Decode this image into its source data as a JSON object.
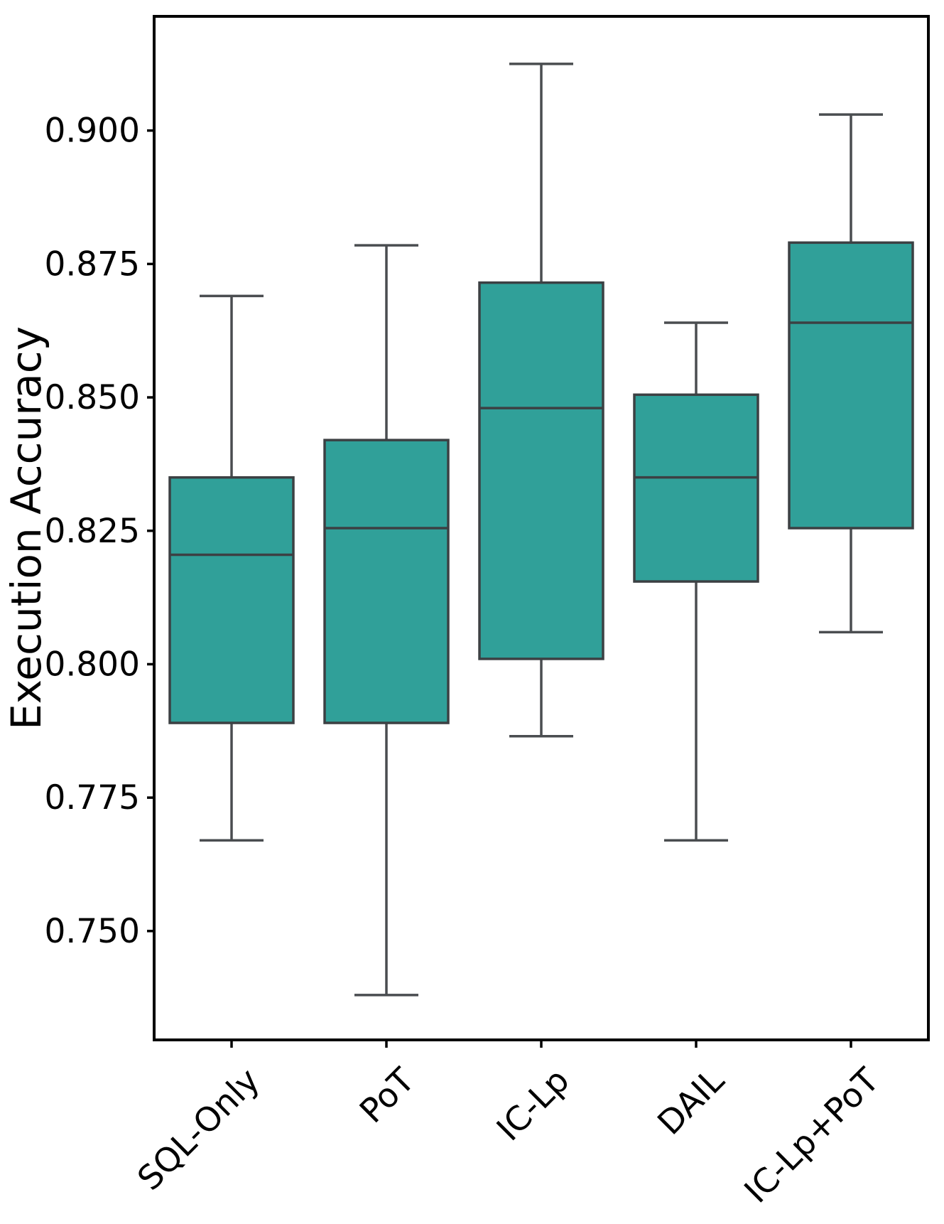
{
  "chart_data": {
    "type": "box",
    "title": "",
    "xlabel": "",
    "ylabel": "Execution Accuracy",
    "categories": [
      "SQL-Only",
      "PoT",
      "IC-Lp",
      "DAIL",
      "IC-Lp+PoT"
    ],
    "series": [
      {
        "name": "SQL-Only",
        "whisker_low": 0.767,
        "q1": 0.789,
        "median": 0.8205,
        "q3": 0.835,
        "whisker_high": 0.869
      },
      {
        "name": "PoT",
        "whisker_low": 0.738,
        "q1": 0.789,
        "median": 0.8255,
        "q3": 0.842,
        "whisker_high": 0.8785
      },
      {
        "name": "IC-Lp",
        "whisker_low": 0.7865,
        "q1": 0.801,
        "median": 0.848,
        "q3": 0.8715,
        "whisker_high": 0.9125
      },
      {
        "name": "DAIL",
        "whisker_low": 0.767,
        "q1": 0.8155,
        "median": 0.835,
        "q3": 0.8505,
        "whisker_high": 0.864
      },
      {
        "name": "IC-Lp+PoT",
        "whisker_low": 0.806,
        "q1": 0.8255,
        "median": 0.864,
        "q3": 0.879,
        "whisker_high": 0.903
      }
    ],
    "yticks": [
      0.75,
      0.775,
      0.8,
      0.825,
      0.85,
      0.875,
      0.9
    ],
    "ytick_labels": [
      "0.750",
      "0.775",
      "0.800",
      "0.825",
      "0.850",
      "0.875",
      "0.900"
    ],
    "ylim": [
      0.7296,
      0.9214
    ],
    "grid": false,
    "legend": null,
    "colors": {
      "box_fill": "#30A099",
      "box_edge": "#3C4043",
      "whisker": "#4A4D50",
      "axis": "#000000",
      "text": "#000000"
    }
  }
}
